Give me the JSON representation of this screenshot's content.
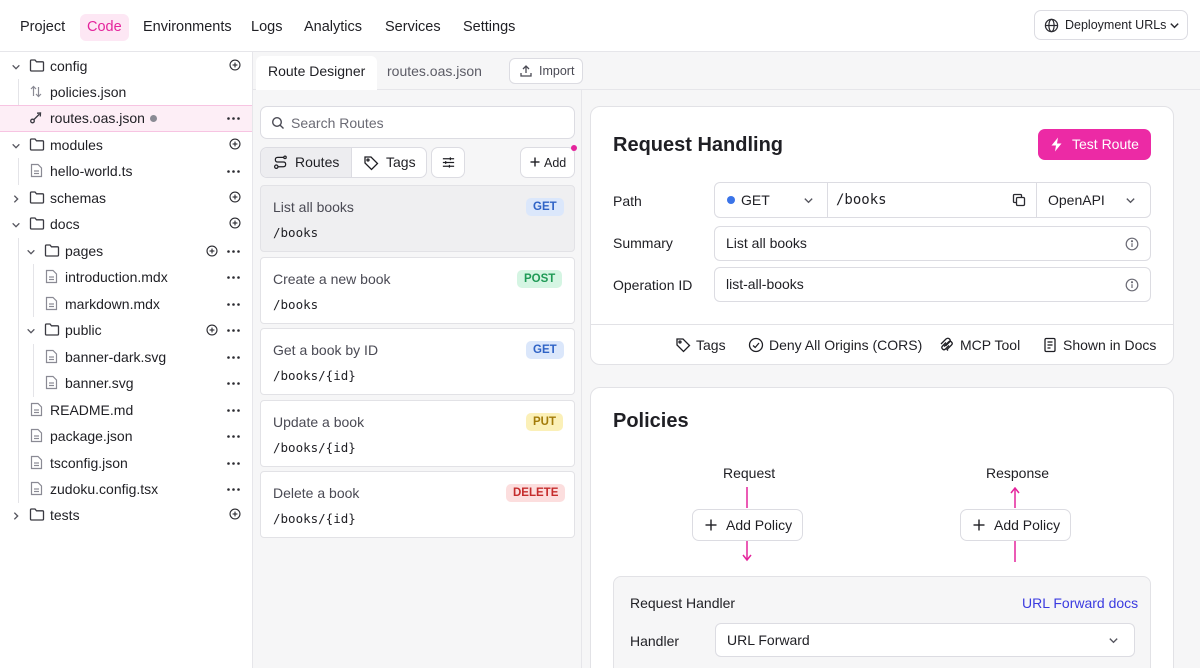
{
  "nav": {
    "items": [
      "Project",
      "Code",
      "Environments",
      "Logs",
      "Analytics",
      "Services",
      "Settings"
    ],
    "active": "Code",
    "deployment_label": "Deployment URLs"
  },
  "tree": {
    "items": [
      {
        "label": "config",
        "type": "folder"
      },
      {
        "label": "policies.json",
        "type": "file"
      },
      {
        "label": "routes.oas.json",
        "type": "file",
        "selected": true,
        "modified": true
      },
      {
        "label": "modules",
        "type": "folder"
      },
      {
        "label": "hello-world.ts",
        "type": "file"
      },
      {
        "label": "schemas",
        "type": "folder"
      },
      {
        "label": "docs",
        "type": "folder"
      },
      {
        "label": "pages",
        "type": "folder"
      },
      {
        "label": "introduction.mdx",
        "type": "file"
      },
      {
        "label": "markdown.mdx",
        "type": "file"
      },
      {
        "label": "public",
        "type": "folder"
      },
      {
        "label": "banner-dark.svg",
        "type": "file"
      },
      {
        "label": "banner.svg",
        "type": "file"
      },
      {
        "label": "README.md",
        "type": "file"
      },
      {
        "label": "package.json",
        "type": "file"
      },
      {
        "label": "tsconfig.json",
        "type": "file"
      },
      {
        "label": "zudoku.config.tsx",
        "type": "file"
      },
      {
        "label": "tests",
        "type": "folder"
      }
    ]
  },
  "tabs": {
    "items": [
      "Route Designer",
      "routes.oas.json"
    ],
    "active": "Route Designer",
    "import_label": "Import"
  },
  "routes_panel": {
    "search_placeholder": "Search Routes",
    "routes_label": "Routes",
    "tags_label": "Tags",
    "add_label": "Add",
    "routes": [
      {
        "name": "List all books",
        "method": "GET",
        "path": "/books",
        "selected": true
      },
      {
        "name": "Create a new book",
        "method": "POST",
        "path": "/books"
      },
      {
        "name": "Get a book by ID",
        "method": "GET",
        "path": "/books/{id}"
      },
      {
        "name": "Update a book",
        "method": "PUT",
        "path": "/books/{id}"
      },
      {
        "name": "Delete a book",
        "method": "DELETE",
        "path": "/books/{id}"
      }
    ]
  },
  "request_handling": {
    "title": "Request Handling",
    "test_label": "Test Route",
    "path_label": "Path",
    "method": "GET",
    "path_value": "/books",
    "spec": "OpenAPI",
    "summary_label": "Summary",
    "summary_value": "List all books",
    "operation_label": "Operation ID",
    "operation_value": "list-all-books",
    "footer": {
      "tags": "Tags",
      "cors": "Deny All Origins (CORS)",
      "mcp": "MCP Tool",
      "docs": "Shown in Docs"
    }
  },
  "policies": {
    "title": "Policies",
    "request_label": "Request",
    "response_label": "Response",
    "add_policy_label": "Add Policy",
    "handler_title": "Request Handler",
    "handler_docs_link": "URL Forward docs",
    "handler_label": "Handler",
    "handler_value": "URL Forward"
  },
  "colors": {
    "accent": "#e4249c",
    "accent_button": "#ec2aa5",
    "link": "#3b3be0",
    "method_dot": "#3b74e8"
  }
}
